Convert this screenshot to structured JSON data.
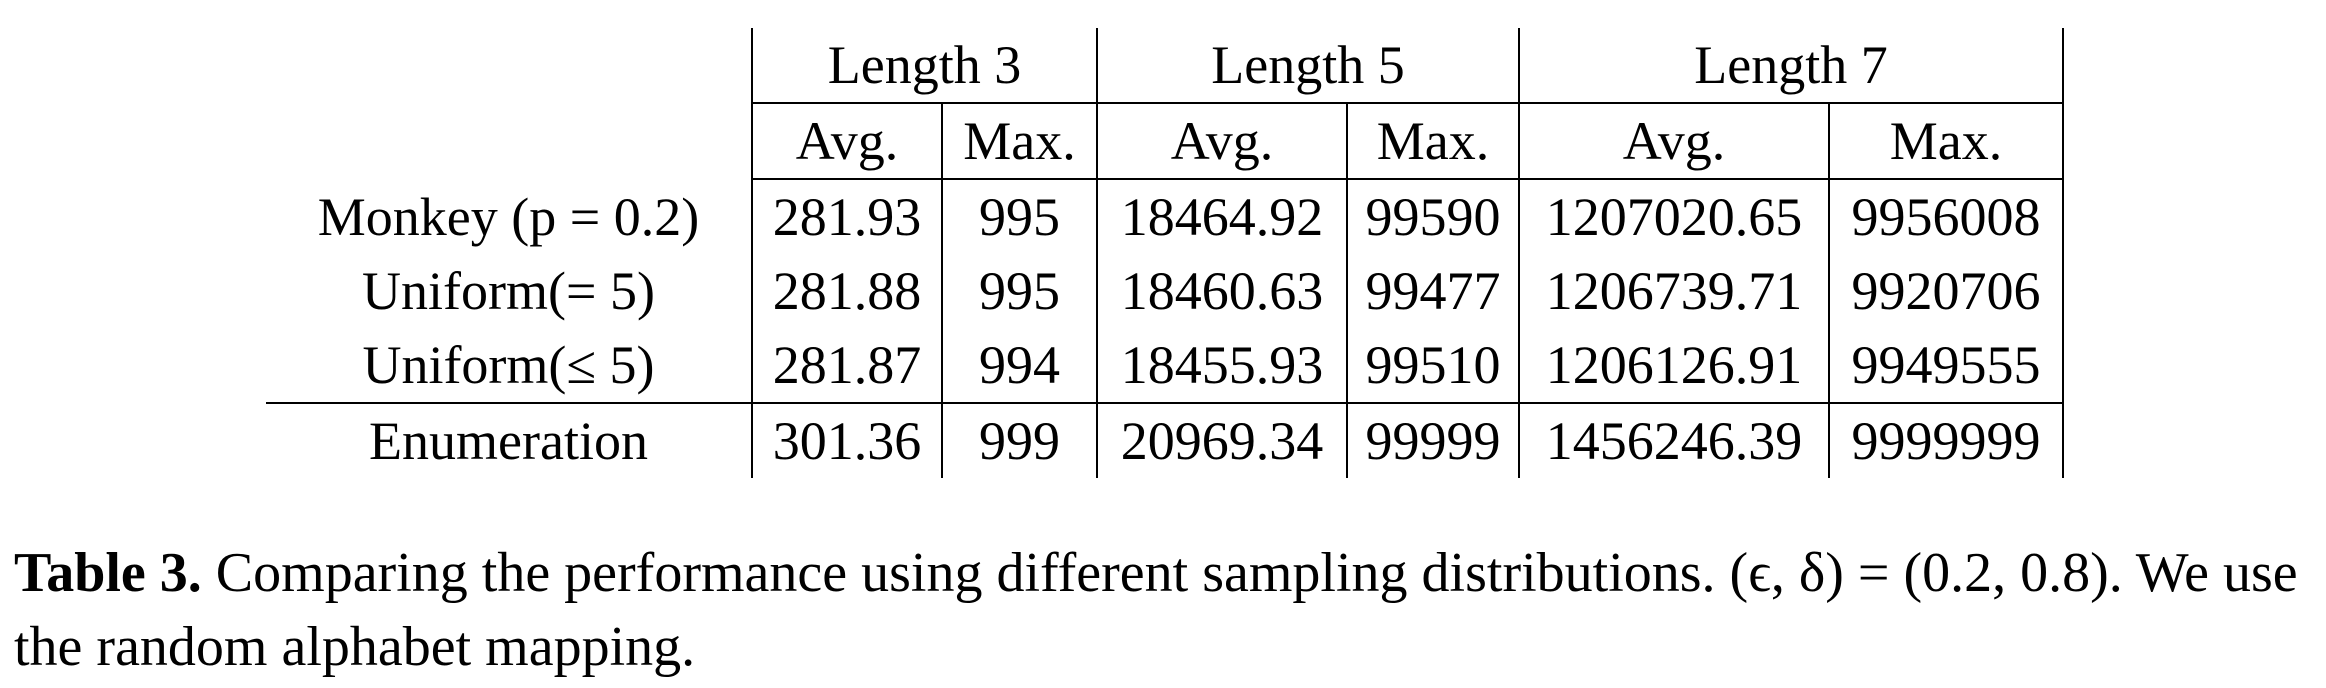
{
  "table": {
    "groups": [
      "Length 3",
      "Length 5",
      "Length 7"
    ],
    "subcols": [
      "Avg.",
      "Max.",
      "Avg.",
      "Max.",
      "Avg.",
      "Max."
    ],
    "rows": [
      {
        "label": "Monkey (p = 0.2)",
        "values": [
          "281.93",
          "995",
          "18464.92",
          "99590",
          "1207020.65",
          "9956008"
        ]
      },
      {
        "label": "Uniform(= 5)",
        "values": [
          "281.88",
          "995",
          "18460.63",
          "99477",
          "1206739.71",
          "9920706"
        ]
      },
      {
        "label": "Uniform(≤ 5)",
        "values": [
          "281.87",
          "994",
          "18455.93",
          "99510",
          "1206126.91",
          "9949555"
        ]
      },
      {
        "label": "Enumeration",
        "values": [
          "301.36",
          "999",
          "20969.34",
          "99999",
          "1456246.39",
          "9999999"
        ]
      }
    ]
  },
  "caption": {
    "label": "Table 3.",
    "text": "Comparing the performance using different sampling distributions. (ϵ, δ) = (0.2, 0.8). We use the random alphabet mapping."
  }
}
